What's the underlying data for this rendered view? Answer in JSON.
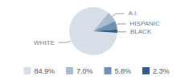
{
  "chart_data": {
    "type": "pie",
    "categories": [
      "WHITE",
      "A.I.",
      "HISPANIC",
      "BLACK"
    ],
    "values": [
      84.9,
      7.0,
      5.8,
      2.3
    ],
    "value_labels": [
      "84.9%",
      "7.0%",
      "5.8%",
      "2.3%"
    ],
    "colors": [
      "#d6dee7",
      "#a7bccf",
      "#6f90ae",
      "#2f5d86"
    ],
    "legend": "bottom"
  }
}
